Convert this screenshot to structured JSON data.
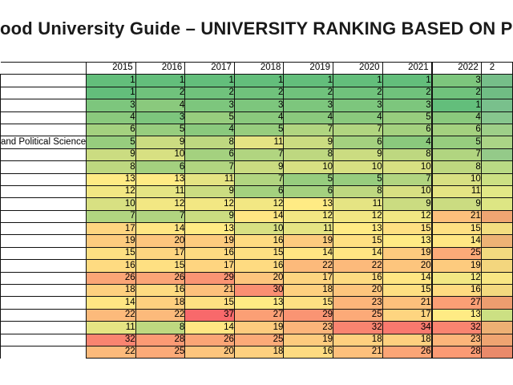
{
  "title": "ood University Guide – UNIVERSITY RANKING BASED ON PERFO",
  "chart_data": {
    "type": "heatmap",
    "title": "ood University Guide – UNIVERSITY RANKING BASED ON PERFO",
    "columns": [
      "2015",
      "2016",
      "2017",
      "2018",
      "2019",
      "2020",
      "2021",
      "2022"
    ],
    "partial_column_header": "2",
    "rows": [
      {
        "name": "",
        "values": [
          1,
          1,
          1,
          1,
          1,
          1,
          1,
          3
        ]
      },
      {
        "name": "",
        "values": [
          1,
          2,
          2,
          2,
          2,
          2,
          2,
          2
        ]
      },
      {
        "name": "",
        "values": [
          3,
          4,
          3,
          3,
          3,
          3,
          3,
          1
        ]
      },
      {
        "name": "",
        "values": [
          4,
          3,
          5,
          4,
          4,
          4,
          5,
          4
        ]
      },
      {
        "name": "",
        "values": [
          6,
          5,
          4,
          5,
          7,
          7,
          6,
          6
        ]
      },
      {
        "name": "and Political Science",
        "values": [
          5,
          9,
          8,
          11,
          9,
          6,
          4,
          5
        ]
      },
      {
        "name": "",
        "values": [
          9,
          10,
          6,
          7,
          8,
          9,
          8,
          7
        ]
      },
      {
        "name": "",
        "values": [
          8,
          6,
          7,
          9,
          10,
          10,
          10,
          8
        ]
      },
      {
        "name": "",
        "values": [
          13,
          13,
          11,
          7,
          5,
          5,
          7,
          10
        ]
      },
      {
        "name": "",
        "values": [
          12,
          11,
          9,
          6,
          6,
          8,
          10,
          11
        ]
      },
      {
        "name": "",
        "values": [
          10,
          12,
          12,
          12,
          13,
          11,
          9,
          9
        ]
      },
      {
        "name": "",
        "values": [
          7,
          7,
          9,
          14,
          12,
          12,
          12,
          21
        ]
      },
      {
        "name": "",
        "values": [
          17,
          14,
          13,
          10,
          11,
          13,
          15,
          15
        ]
      },
      {
        "name": "",
        "values": [
          19,
          20,
          19,
          16,
          19,
          15,
          13,
          14
        ]
      },
      {
        "name": "",
        "values": [
          15,
          17,
          16,
          15,
          14,
          14,
          19,
          25
        ]
      },
      {
        "name": "",
        "values": [
          16,
          15,
          17,
          16,
          22,
          22,
          20,
          19
        ]
      },
      {
        "name": "",
        "values": [
          26,
          26,
          29,
          20,
          17,
          16,
          14,
          12
        ]
      },
      {
        "name": "",
        "values": [
          18,
          16,
          21,
          30,
          18,
          20,
          15,
          16
        ]
      },
      {
        "name": "",
        "values": [
          14,
          18,
          15,
          13,
          15,
          23,
          21,
          27
        ]
      },
      {
        "name": "",
        "values": [
          22,
          22,
          37,
          27,
          29,
          25,
          17,
          13
        ]
      },
      {
        "name": "",
        "values": [
          11,
          8,
          14,
          19,
          23,
          32,
          34,
          32
        ]
      },
      {
        "name": "",
        "values": [
          32,
          28,
          26,
          25,
          19,
          18,
          18,
          23
        ]
      },
      {
        "name": "",
        "values": [
          22,
          25,
          20,
          18,
          16,
          21,
          26,
          28
        ]
      }
    ],
    "partial_column_colors": [
      "#76BE89",
      "#70BD84",
      "#79C08C",
      "#87C68E",
      "#9ECF88",
      "#ABD486",
      "#94CA89",
      "#BADA85",
      "#CCE083",
      "#E2E886",
      "#DDE684",
      "#EFA572",
      "#F3DD80",
      "#EDB275",
      "#F3DA7F",
      "#F3D67E",
      "#F8E683",
      "#F3D97F",
      "#ED9D6F",
      "#CCE083",
      "#EDB074",
      "#EFA471",
      "#EA8A6A"
    ],
    "color_scale": {
      "min_value": 1,
      "mid_value": 13,
      "max_value": 37,
      "min_color": "#63BE7B",
      "mid_color": "#FFEB84",
      "max_color": "#F8696B"
    },
    "layout": {
      "grid": "black cell borders",
      "thick_divider_before_column": "2022"
    }
  },
  "colors": {
    "border": "#111111",
    "background": "#FFFFFF",
    "text": "#000000",
    "title_text": "#1A1A1A"
  }
}
